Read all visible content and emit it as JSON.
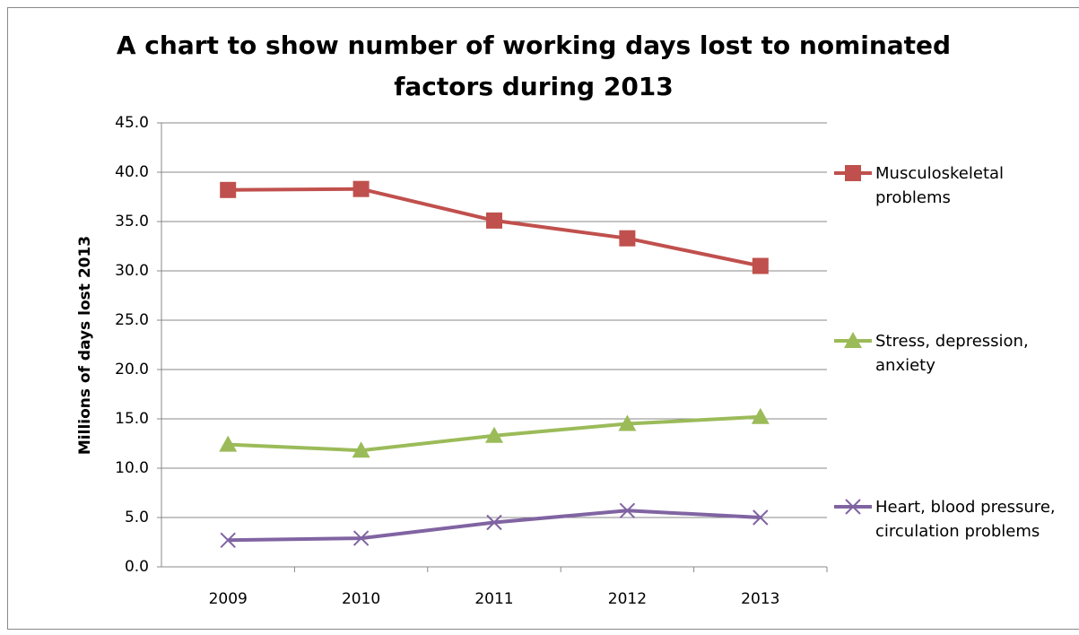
{
  "chart_data": {
    "type": "line",
    "title": "A chart to show number of working days lost to nominated factors during 2013",
    "y_label": "Millions of days lost 2013",
    "categories": [
      "2009",
      "2010",
      "2011",
      "2012",
      "2013"
    ],
    "series": [
      {
        "name": "Musculoskeletal problems",
        "color": "#c0504d",
        "marker": "square",
        "values": [
          38.2,
          38.3,
          35.1,
          33.3,
          30.5
        ]
      },
      {
        "name": "Stress, depression, anxiety",
        "color": "#9bbb59",
        "marker": "triangle",
        "values": [
          12.4,
          11.8,
          13.3,
          14.5,
          15.2
        ]
      },
      {
        "name": "Heart, blood pressure, circulation problems",
        "color": "#8064a2",
        "marker": "x",
        "values": [
          2.7,
          2.9,
          4.5,
          5.7,
          5.0
        ]
      }
    ],
    "ylim": [
      0,
      45
    ],
    "yticks": [
      {
        "value": 0,
        "label": "0.0"
      },
      {
        "value": 5,
        "label": "5.0"
      },
      {
        "value": 10,
        "label": "10.0"
      },
      {
        "value": 15,
        "label": "15.0"
      },
      {
        "value": 20,
        "label": "20.0"
      },
      {
        "value": 25,
        "label": "25.0"
      },
      {
        "value": 30,
        "label": "30.0"
      },
      {
        "value": 35,
        "label": "35.0"
      },
      {
        "value": 40,
        "label": "40.0"
      },
      {
        "value": 45,
        "label": "45.0"
      }
    ],
    "grid": true,
    "legend": "right"
  }
}
